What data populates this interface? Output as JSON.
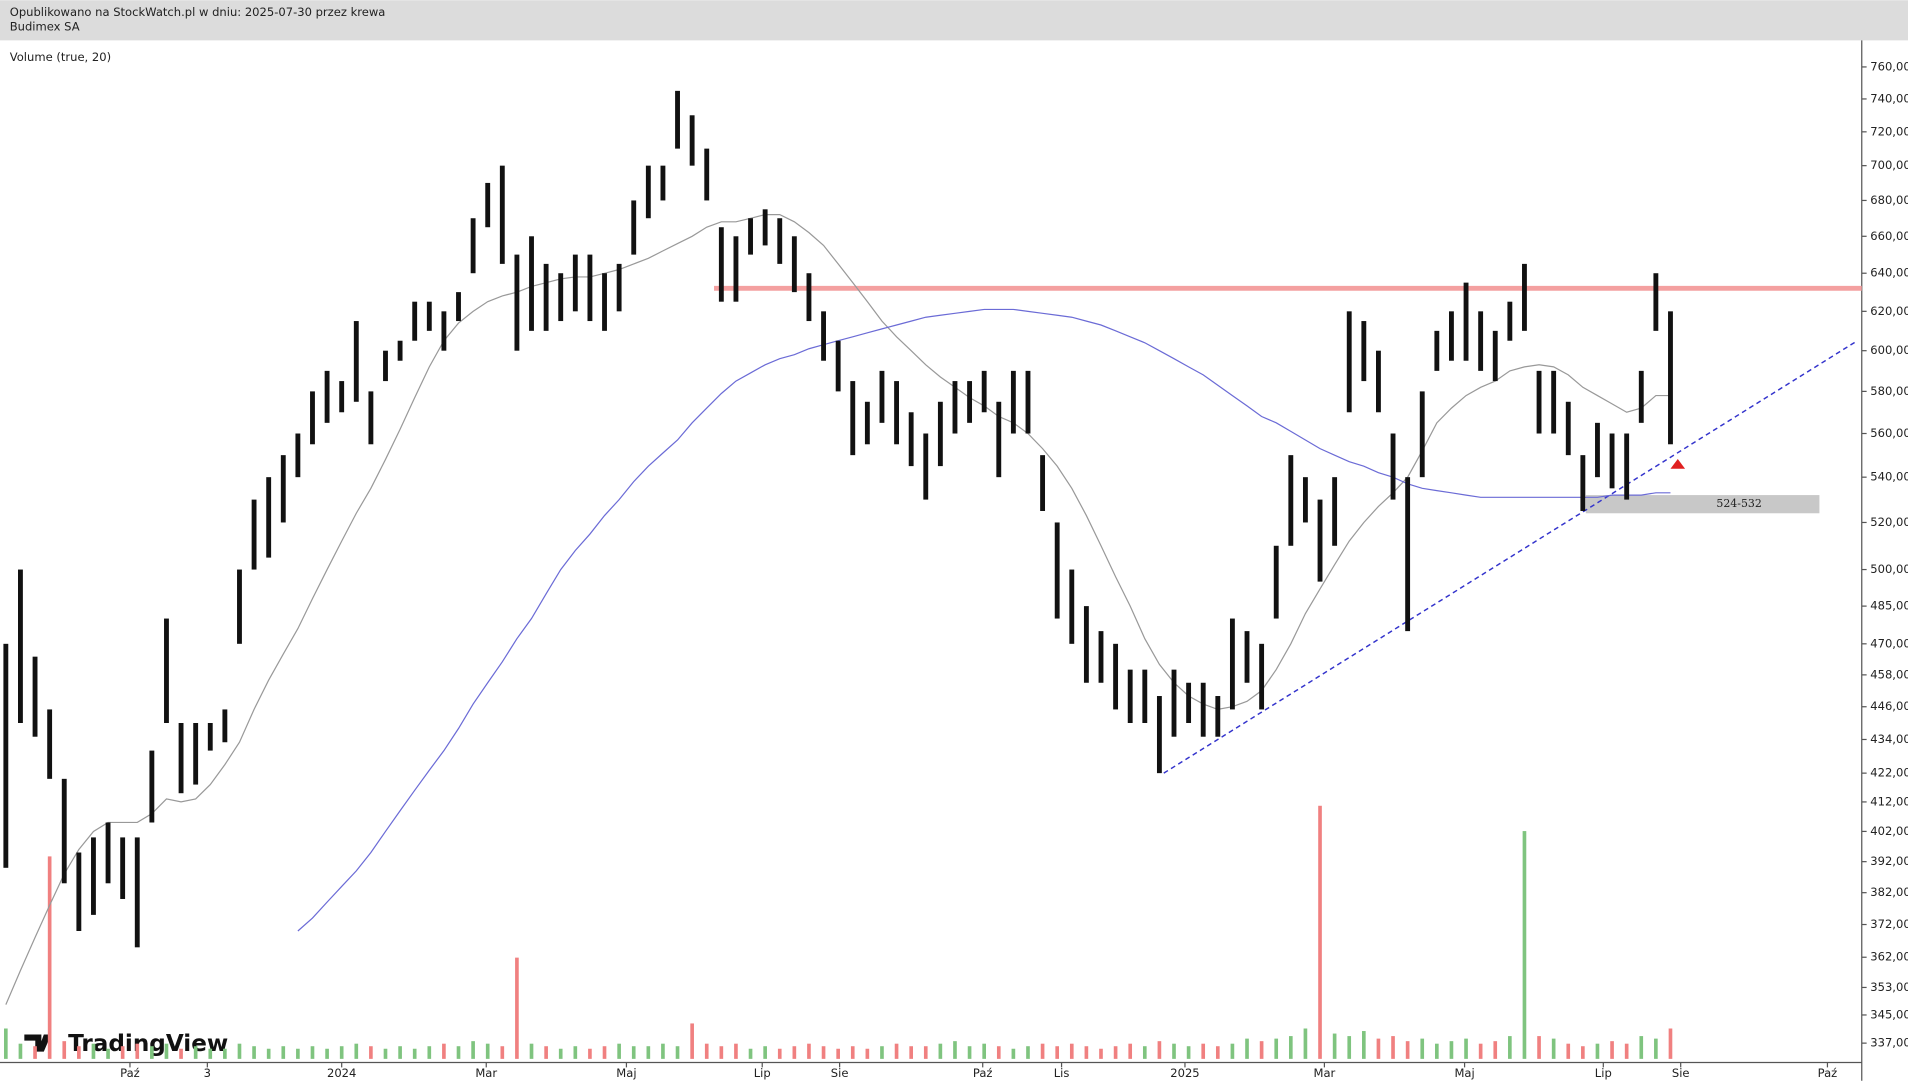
{
  "header": {
    "published": "Opublikowano na StockWatch.pl w dniu: 2025-07-30 przez krewa",
    "symbol": "Budimex SA",
    "indicator": "Volume (true, 20)",
    "logo": "TradingView"
  },
  "chart_data": {
    "type": "ohlc",
    "log_scale": true,
    "xlim": [
      -0.4,
      127.1
    ],
    "xticks": [
      {
        "value": 8.5,
        "label": "Paź"
      },
      {
        "value": 13.8,
        "label": "3"
      },
      {
        "value": 23,
        "label": "2024"
      },
      {
        "value": 32.9,
        "label": "Mar"
      },
      {
        "value": 42.5,
        "label": "Maj"
      },
      {
        "value": 51.8,
        "label": "Lip"
      },
      {
        "value": 57.1,
        "label": "Sie"
      },
      {
        "value": 66.9,
        "label": "Paź"
      },
      {
        "value": 72.3,
        "label": "Lis"
      },
      {
        "value": 80.75,
        "label": "2025"
      },
      {
        "value": 90.3,
        "label": "Mar"
      },
      {
        "value": 99.9,
        "label": "Maj"
      },
      {
        "value": 109.4,
        "label": "Lip"
      },
      {
        "value": 114.7,
        "label": "Sie"
      },
      {
        "value": 124.75,
        "label": "Paź"
      }
    ],
    "ylim": [
      331.6,
      777
    ],
    "yticks": [
      {
        "value": 760,
        "label": "760,00"
      },
      {
        "value": 740,
        "label": "740,00"
      },
      {
        "value": 720,
        "label": "720,00"
      },
      {
        "value": 700,
        "label": "700,00"
      },
      {
        "value": 680,
        "label": "680,00"
      },
      {
        "value": 660,
        "label": "660,00"
      },
      {
        "value": 640,
        "label": "640,00"
      },
      {
        "value": 620,
        "label": "620,00"
      },
      {
        "value": 600,
        "label": "600,00"
      },
      {
        "value": 580,
        "label": "580,00"
      },
      {
        "value": 560,
        "label": "560,00"
      },
      {
        "value": 540,
        "label": "540,00"
      },
      {
        "value": 520,
        "label": "520,00"
      },
      {
        "value": 500,
        "label": "500,00"
      },
      {
        "value": 485,
        "label": "485,00"
      },
      {
        "value": 470,
        "label": "470,00"
      },
      {
        "value": 458,
        "label": "458,00"
      },
      {
        "value": 446,
        "label": "446,00"
      },
      {
        "value": 434,
        "label": "434,00"
      },
      {
        "value": 422,
        "label": "422,00"
      },
      {
        "value": 412,
        "label": "412,00"
      },
      {
        "value": 402,
        "label": "402,00"
      },
      {
        "value": 392,
        "label": "392,00"
      },
      {
        "value": 382,
        "label": "382,00"
      },
      {
        "value": 372,
        "label": "372,00"
      },
      {
        "value": 362,
        "label": "362,00"
      },
      {
        "value": 353,
        "label": "353,00"
      },
      {
        "value": 345,
        "label": "345,00"
      },
      {
        "value": 337,
        "label": "337,00"
      }
    ],
    "low": [
      390,
      440,
      435,
      420,
      385,
      370,
      375,
      385,
      380,
      365,
      405,
      440,
      415,
      418,
      430,
      433,
      470,
      500,
      505,
      520,
      540,
      555,
      565,
      570,
      575,
      555,
      585,
      595,
      605,
      610,
      600,
      615,
      640,
      665,
      645,
      600,
      610,
      610,
      615,
      620,
      615,
      610,
      620,
      650,
      670,
      680,
      710,
      700,
      680,
      625,
      625,
      650,
      655,
      645,
      630,
      615,
      595,
      580,
      550,
      555,
      565,
      555,
      545,
      530,
      545,
      560,
      565,
      570,
      540,
      560,
      560,
      525,
      480,
      470,
      455,
      455,
      445,
      440,
      440,
      422,
      435,
      440,
      435,
      435,
      445,
      455,
      445,
      480,
      510,
      520,
      495,
      510,
      570,
      585,
      570,
      530,
      475,
      540,
      590,
      595,
      595,
      590,
      585,
      605,
      610,
      560,
      560,
      550,
      525,
      540,
      535,
      530,
      565,
      610,
      555
    ],
    "high": [
      470,
      500,
      465,
      445,
      420,
      395,
      400,
      405,
      400,
      400,
      430,
      480,
      440,
      440,
      440,
      445,
      500,
      530,
      540,
      550,
      560,
      580,
      590,
      585,
      615,
      580,
      600,
      605,
      625,
      625,
      620,
      630,
      670,
      690,
      700,
      650,
      660,
      645,
      640,
      650,
      650,
      640,
      645,
      680,
      700,
      700,
      745,
      730,
      710,
      665,
      660,
      670,
      675,
      670,
      660,
      640,
      620,
      605,
      585,
      575,
      590,
      585,
      570,
      560,
      575,
      585,
      585,
      590,
      575,
      590,
      590,
      550,
      520,
      500,
      485,
      475,
      470,
      460,
      460,
      450,
      460,
      455,
      455,
      450,
      480,
      475,
      470,
      510,
      550,
      540,
      530,
      540,
      620,
      615,
      600,
      560,
      540,
      580,
      610,
      620,
      635,
      620,
      610,
      625,
      645,
      590,
      590,
      575,
      550,
      565,
      560,
      560,
      590,
      640,
      620
    ],
    "series": [
      {
        "color": "#999999",
        "values": [
          348,
          358,
          368,
          378,
          388,
          396,
          402,
          405,
          405,
          405,
          408,
          413,
          412,
          413,
          418,
          425,
          433,
          445,
          456,
          466,
          476,
          488,
          500,
          512,
          524,
          535,
          548,
          562,
          577,
          592,
          605,
          614,
          620,
          625,
          628,
          630,
          633,
          635,
          637,
          638,
          638,
          640,
          642,
          645,
          648,
          652,
          656,
          660,
          665,
          668,
          668,
          670,
          672,
          672,
          668,
          662,
          655,
          645,
          635,
          625,
          615,
          607,
          600,
          593,
          587,
          582,
          577,
          573,
          568,
          565,
          560,
          553,
          545,
          535,
          523,
          510,
          497,
          485,
          472,
          462,
          455,
          450,
          447,
          445,
          446,
          448,
          452,
          460,
          470,
          482,
          492,
          502,
          512,
          520,
          527,
          533,
          540,
          552,
          565,
          572,
          578,
          582,
          585,
          590,
          592,
          593,
          592,
          588,
          582,
          578,
          574,
          570,
          572,
          578,
          578
        ]
      },
      {
        "color": "#6b6bd6",
        "values": [
          null,
          null,
          null,
          null,
          null,
          null,
          null,
          null,
          null,
          null,
          null,
          null,
          null,
          null,
          null,
          null,
          null,
          null,
          null,
          null,
          370,
          374,
          379,
          384,
          389,
          395,
          402,
          409,
          416,
          423,
          430,
          438,
          447,
          455,
          463,
          472,
          480,
          490,
          500,
          508,
          515,
          523,
          530,
          538,
          545,
          551,
          557,
          565,
          572,
          579,
          585,
          589,
          593,
          596,
          598,
          601,
          603,
          605,
          607,
          609,
          611,
          613,
          615,
          617,
          618,
          619,
          620,
          621,
          621,
          621,
          620,
          619,
          618,
          617,
          615,
          613,
          610,
          607,
          604,
          600,
          596,
          592,
          588,
          583,
          578,
          573,
          568,
          565,
          561,
          557,
          553,
          550,
          547,
          545,
          542,
          540,
          537,
          535,
          534,
          533,
          532,
          531,
          531,
          531,
          531,
          531,
          531,
          531,
          531,
          531,
          532,
          532,
          532,
          533,
          533
        ]
      }
    ],
    "volume": [
      12,
      6,
      5,
      80,
      7,
      5,
      6,
      4,
      5,
      6,
      5,
      6,
      4,
      5,
      4,
      4,
      6,
      5,
      4,
      5,
      4,
      5,
      4,
      5,
      6,
      5,
      4,
      5,
      4,
      5,
      6,
      5,
      7,
      6,
      5,
      40,
      6,
      5,
      4,
      5,
      4,
      5,
      6,
      5,
      5,
      6,
      5,
      14,
      6,
      5,
      6,
      4,
      5,
      4,
      5,
      6,
      5,
      4,
      5,
      4,
      5,
      6,
      5,
      5,
      6,
      7,
      5,
      6,
      5,
      4,
      5,
      6,
      5,
      6,
      5,
      4,
      5,
      6,
      5,
      7,
      6,
      5,
      6,
      5,
      6,
      8,
      7,
      8,
      9,
      12,
      100,
      10,
      9,
      11,
      8,
      9,
      7,
      8,
      6,
      7,
      8,
      6,
      7,
      9,
      90,
      9,
      8,
      6,
      5,
      6,
      7,
      6,
      9,
      8,
      12
    ],
    "volume_lim": [
      0,
      100
    ],
    "up_color": "#7fc47f",
    "down_color": "#f08080",
    "annotations": {
      "resistance": {
        "x": [
          48.5,
          127.1
        ],
        "value": 632,
        "color": "#f4a0a0"
      },
      "trendline": {
        "x": [
          79.3,
          126.8
        ],
        "y": [
          422,
          605
        ],
        "color": "#3333cc"
      },
      "zone": {
        "x": [
          108.2,
          124.2
        ],
        "low": 524,
        "high": 532,
        "label": "524-532"
      },
      "marker": {
        "x": 114.5,
        "y": 546,
        "color": "#e02020"
      }
    }
  }
}
